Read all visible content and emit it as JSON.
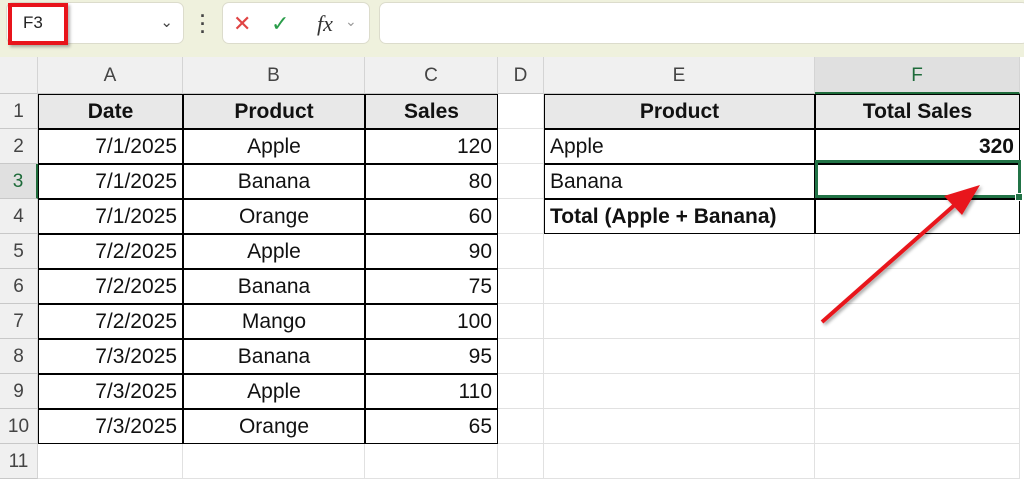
{
  "name_box": {
    "value": "F3"
  },
  "formula_bar": {
    "cancel_icon": "x-icon",
    "enter_icon": "check-icon",
    "fx_label": "fx",
    "value": ""
  },
  "columns": [
    "A",
    "B",
    "C",
    "D",
    "E",
    "F"
  ],
  "selected_cell": "F3",
  "rows": [
    "1",
    "2",
    "3",
    "4",
    "5",
    "6",
    "7",
    "8",
    "9",
    "10",
    "11"
  ],
  "sales_table": {
    "headers": [
      "Date",
      "Product",
      "Sales"
    ],
    "rows": [
      [
        "7/1/2025",
        "Apple",
        "120"
      ],
      [
        "7/1/2025",
        "Banana",
        "80"
      ],
      [
        "7/1/2025",
        "Orange",
        "60"
      ],
      [
        "7/2/2025",
        "Apple",
        "90"
      ],
      [
        "7/2/2025",
        "Banana",
        "75"
      ],
      [
        "7/2/2025",
        "Mango",
        "100"
      ],
      [
        "7/3/2025",
        "Banana",
        "95"
      ],
      [
        "7/3/2025",
        "Apple",
        "110"
      ],
      [
        "7/3/2025",
        "Orange",
        "65"
      ]
    ]
  },
  "summary_table": {
    "headers": [
      "Product",
      "Total Sales"
    ],
    "rows": [
      [
        "Apple",
        "320"
      ],
      [
        "Banana",
        ""
      ],
      [
        "Total (Apple + Banana)",
        ""
      ]
    ]
  },
  "annotation": {
    "color": "#e8141b",
    "arrow_target": "F3"
  }
}
